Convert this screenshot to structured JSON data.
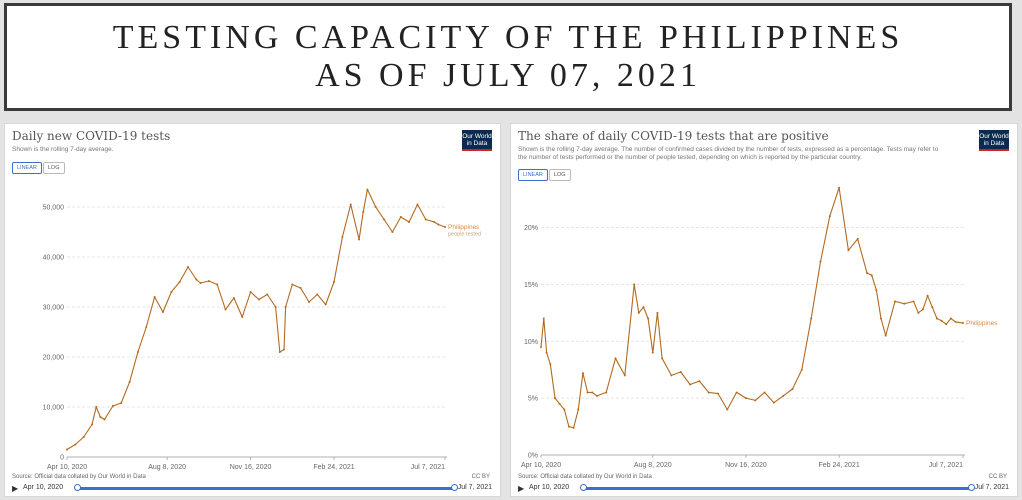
{
  "banner": {
    "line1": "TESTING CAPACITY OF THE PHILIPPINES",
    "line2": "AS OF JULY 07, 2021"
  },
  "colors": {
    "line": "#b36a1e",
    "grid": "#dddddd",
    "label": "#e08a3a",
    "axis": "#666666"
  },
  "toggle": {
    "linear": "LINEAR",
    "log": "LOG"
  },
  "owid_logo": {
    "line1": "Our World",
    "line2": "in Data"
  },
  "footer": {
    "source": "Source: Official data collated by Our World in Data",
    "license": "CC BY"
  },
  "timeline": {
    "start": "Apr 10, 2020",
    "end": "Jul 7, 2021"
  },
  "chart_data": [
    {
      "type": "line",
      "title": "Daily new COVID-19 tests",
      "subtitle": "Shown is the rolling 7-day average.",
      "xlabel": "",
      "ylabel": "",
      "ylim": [
        0,
        55000
      ],
      "yticks": [
        0,
        10000,
        20000,
        30000,
        40000,
        50000
      ],
      "ytick_labels": [
        "0",
        "10,000",
        "20,000",
        "30,000",
        "40,000",
        "50,000"
      ],
      "xticks": [
        0,
        120,
        220,
        320,
        453
      ],
      "xtick_labels": [
        "Apr 10, 2020",
        "Aug 8, 2020",
        "Nov 16, 2020",
        "Feb 24, 2021",
        "Jul 7, 2021"
      ],
      "series": [
        {
          "name": "Philippines",
          "label_lines": [
            "Philippines",
            "people tested"
          ],
          "x": [
            0,
            10,
            20,
            30,
            35,
            40,
            45,
            55,
            65,
            75,
            85,
            95,
            105,
            115,
            125,
            135,
            145,
            155,
            160,
            170,
            180,
            190,
            200,
            210,
            220,
            230,
            240,
            250,
            255,
            260,
            262,
            270,
            280,
            290,
            300,
            310,
            320,
            330,
            340,
            350,
            355,
            360,
            370,
            380,
            390,
            400,
            410,
            420,
            430,
            440,
            445,
            453
          ],
          "values": [
            1500,
            2500,
            4000,
            6500,
            10000,
            8000,
            7500,
            10200,
            10800,
            15000,
            21000,
            26000,
            32000,
            29000,
            33000,
            35000,
            38000,
            35500,
            34800,
            35200,
            34500,
            29500,
            31800,
            28000,
            33000,
            31500,
            32500,
            30000,
            21000,
            21500,
            30000,
            34500,
            33800,
            31000,
            32500,
            30500,
            35000,
            44000,
            50500,
            43500,
            49000,
            53500,
            50000,
            47500,
            45000,
            48000,
            47000,
            50500,
            47500,
            47000,
            46500,
            46000
          ]
        }
      ]
    },
    {
      "type": "line",
      "title": "The share of daily COVID-19 tests that are positive",
      "subtitle": "Shown is the rolling 7-day average. The number of confirmed cases divided by the number of tests, expressed as a percentage. Tests may refer to the number of tests performed or the number of people tested, depending on which is reported by the particular country.",
      "xlabel": "",
      "ylabel": "",
      "ylim": [
        0,
        24
      ],
      "yticks": [
        0,
        5,
        10,
        15,
        20
      ],
      "ytick_labels": [
        "0%",
        "5%",
        "10%",
        "15%",
        "20%"
      ],
      "xticks": [
        0,
        120,
        220,
        320,
        453
      ],
      "xtick_labels": [
        "Apr 10, 2020",
        "Aug 8, 2020",
        "Nov 16, 2020",
        "Feb 24, 2021",
        "Jul 7, 2021"
      ],
      "series": [
        {
          "name": "Philippines",
          "label_lines": [
            "Philippines"
          ],
          "x": [
            0,
            3,
            6,
            10,
            15,
            20,
            25,
            30,
            35,
            40,
            45,
            50,
            55,
            60,
            70,
            80,
            90,
            100,
            105,
            110,
            115,
            120,
            125,
            130,
            140,
            150,
            160,
            170,
            180,
            190,
            200,
            210,
            220,
            230,
            240,
            250,
            260,
            270,
            280,
            290,
            300,
            310,
            320,
            330,
            340,
            350,
            355,
            360,
            365,
            370,
            380,
            390,
            400,
            405,
            410,
            415,
            420,
            425,
            430,
            435,
            440,
            445,
            453
          ],
          "values": [
            9.5,
            12,
            9,
            8,
            5,
            4.5,
            4,
            2.5,
            2.4,
            4,
            7.2,
            5.5,
            5.5,
            5.2,
            5.5,
            8.5,
            7,
            15,
            12.5,
            13,
            12,
            9,
            12.5,
            8.5,
            7,
            7.3,
            6.2,
            6.5,
            5.5,
            5.4,
            4,
            5.5,
            5,
            4.8,
            5.5,
            4.6,
            5.2,
            5.8,
            7.5,
            12,
            17,
            21,
            23.5,
            18,
            19,
            16,
            15.8,
            14.5,
            12,
            10.5,
            13.5,
            13.3,
            13.5,
            12.5,
            12.8,
            14,
            13,
            12,
            11.8,
            11.5,
            12,
            11.7,
            11.6
          ]
        }
      ]
    }
  ]
}
